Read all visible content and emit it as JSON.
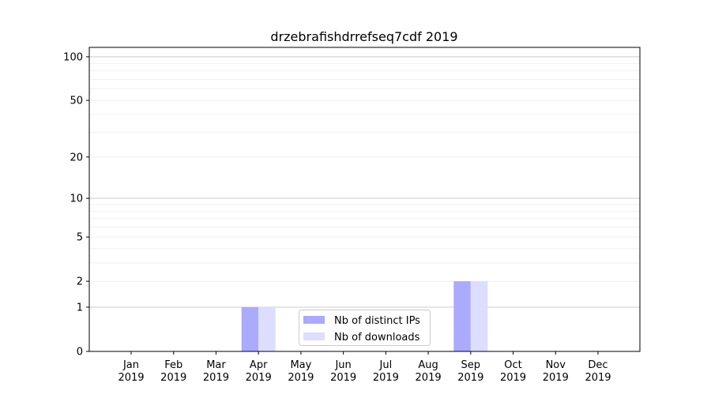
{
  "chart_data": {
    "type": "bar",
    "title": "drzebrafishdrrefseq7cdf 2019",
    "xlabel": "",
    "ylabel": "",
    "yscale": "log10(1+y)",
    "ylim": [
      0,
      116
    ],
    "yticks": [
      0,
      1,
      2,
      5,
      10,
      20,
      50,
      100
    ],
    "grid": true,
    "legend_position": "bottom-center",
    "categories": [
      "Jan\n2019",
      "Feb\n2019",
      "Mar\n2019",
      "Apr\n2019",
      "May\n2019",
      "Jun\n2019",
      "Jul\n2019",
      "Aug\n2019",
      "Sep\n2019",
      "Oct\n2019",
      "Nov\n2019",
      "Dec\n2019"
    ],
    "series": [
      {
        "name": "Nb of distinct IPs",
        "color": "#aaaaff",
        "values": [
          0,
          0,
          0,
          1,
          0,
          0,
          0,
          0,
          2,
          0,
          0,
          0
        ]
      },
      {
        "name": "Nb of downloads",
        "color": "#ddddff",
        "values": [
          0,
          0,
          0,
          1,
          0,
          0,
          0,
          0,
          2,
          0,
          0,
          0
        ]
      }
    ]
  }
}
